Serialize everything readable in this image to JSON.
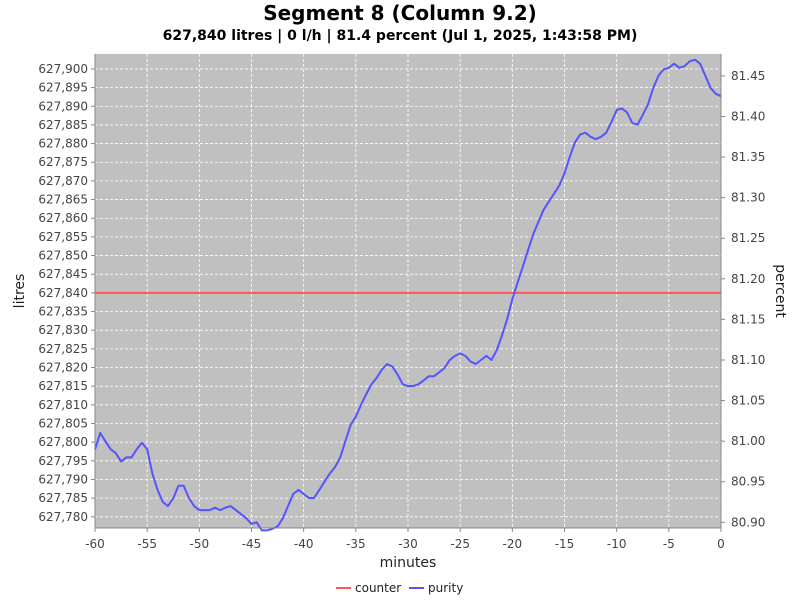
{
  "chart_data": {
    "type": "line",
    "title": "Segment  8 (Column  9.2)",
    "subtitle": "627,840 litres | 0 l/h | 81.4 percent (Jul 1, 2025, 1:43:58 PM)",
    "xlabel": "minutes",
    "ylabel_left": "litres",
    "ylabel_right": "percent",
    "xlim": [
      -60,
      0
    ],
    "ylim_left": [
      627777,
      627904
    ],
    "ylim_right": [
      80.893,
      81.477
    ],
    "xticks": [
      -60,
      -55,
      -50,
      -45,
      -40,
      -35,
      -30,
      -25,
      -20,
      -15,
      -10,
      -5,
      0
    ],
    "yticks_left": [
      627780,
      627785,
      627790,
      627795,
      627800,
      627805,
      627810,
      627815,
      627820,
      627825,
      627830,
      627835,
      627840,
      627845,
      627850,
      627855,
      627860,
      627865,
      627870,
      627875,
      627880,
      627885,
      627890,
      627895,
      627900
    ],
    "yticks_right": [
      80.9,
      80.95,
      81.0,
      81.05,
      81.1,
      81.15,
      81.2,
      81.25,
      81.3,
      81.35,
      81.4,
      81.45
    ],
    "grid": true,
    "plot_background": "#c0c0c0",
    "grid_color": "#ffffff",
    "legend_position": "bottom",
    "series": [
      {
        "name": "counter",
        "axis": "left",
        "color": "#ff5555",
        "x": [
          -60,
          0
        ],
        "values": [
          627840,
          627840
        ]
      },
      {
        "name": "purity",
        "axis": "right",
        "color": "#5555ff",
        "x": [
          -60,
          -59.5,
          -59,
          -58.5,
          -58,
          -57.5,
          -57,
          -56.5,
          -56,
          -55.5,
          -55,
          -54.5,
          -54,
          -53.5,
          -53,
          -52.5,
          -52,
          -51.5,
          -51,
          -50.5,
          -50,
          -49.5,
          -49,
          -48.5,
          -48,
          -47.5,
          -47,
          -46.5,
          -46,
          -45.5,
          -45,
          -44.5,
          -44,
          -43.5,
          -43,
          -42.5,
          -42,
          -41.5,
          -41,
          -40.5,
          -40,
          -39.5,
          -39,
          -38.5,
          -38,
          -37.5,
          -37,
          -36.5,
          -36,
          -35.5,
          -35,
          -34.5,
          -34,
          -33.5,
          -33,
          -32.5,
          -32,
          -31.5,
          -31,
          -30.5,
          -30,
          -29.5,
          -29,
          -28.5,
          -28,
          -27.5,
          -27,
          -26.5,
          -26,
          -25.5,
          -25,
          -24.5,
          -24,
          -23.5,
          -23,
          -22.5,
          -22,
          -21.5,
          -21,
          -20.5,
          -20,
          -19.5,
          -19,
          -18.5,
          -18,
          -17.5,
          -17,
          -16.5,
          -16,
          -15.5,
          -15,
          -14.5,
          -14,
          -13.5,
          -13,
          -12.5,
          -12,
          -11.5,
          -11,
          -10.5,
          -10,
          -9.5,
          -9,
          -8.5,
          -8,
          -7.5,
          -7,
          -6.5,
          -6,
          -5.5,
          -5,
          -4.5,
          -4,
          -3.5,
          -3,
          -2.5,
          -2,
          -1.5,
          -1,
          -0.5,
          0
        ],
        "values": [
          80.99,
          81.01,
          81.0,
          80.99,
          80.985,
          80.975,
          80.98,
          80.98,
          80.99,
          80.998,
          80.99,
          80.96,
          80.94,
          80.925,
          80.92,
          80.93,
          80.945,
          80.945,
          80.93,
          80.92,
          80.915,
          80.915,
          80.915,
          80.918,
          80.915,
          80.918,
          80.92,
          80.915,
          80.91,
          80.905,
          80.898,
          80.9,
          80.89,
          80.89,
          80.892,
          80.895,
          80.905,
          80.92,
          80.935,
          80.94,
          80.935,
          80.93,
          80.93,
          80.94,
          80.95,
          80.96,
          80.968,
          80.98,
          81.0,
          81.02,
          81.03,
          81.045,
          81.058,
          81.07,
          81.078,
          81.088,
          81.095,
          81.092,
          81.082,
          81.07,
          81.068,
          81.068,
          81.07,
          81.075,
          81.08,
          81.08,
          81.085,
          81.09,
          81.1,
          81.105,
          81.108,
          81.105,
          81.098,
          81.095,
          81.1,
          81.105,
          81.1,
          81.112,
          81.13,
          81.15,
          81.175,
          81.195,
          81.215,
          81.235,
          81.255,
          81.27,
          81.285,
          81.295,
          81.305,
          81.315,
          81.33,
          81.35,
          81.368,
          81.378,
          81.38,
          81.375,
          81.372,
          81.375,
          81.38,
          81.393,
          81.408,
          81.41,
          81.405,
          81.392,
          81.39,
          81.402,
          81.415,
          81.435,
          81.45,
          81.458,
          81.46,
          81.465,
          81.46,
          81.462,
          81.468,
          81.47,
          81.465,
          81.45,
          81.435,
          81.428,
          81.425
        ]
      }
    ]
  }
}
